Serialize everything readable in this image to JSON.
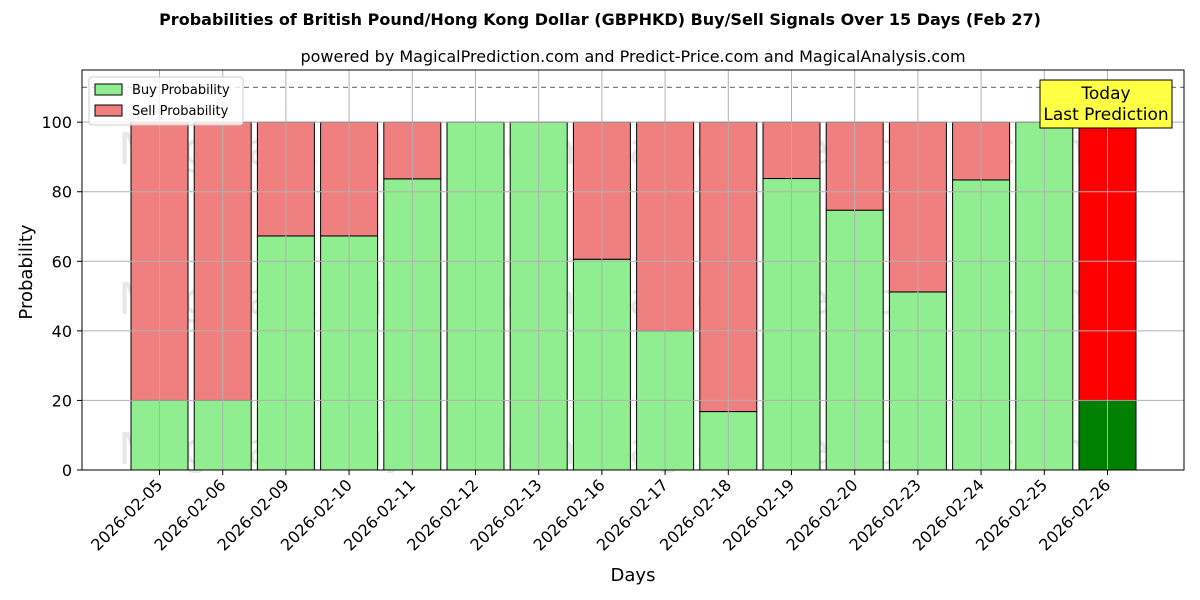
{
  "chart_data": {
    "type": "bar",
    "stacked": true,
    "title": "Probabilities of British Pound/Hong Kong Dollar (GBPHKD) Buy/Sell Signals Over 15 Days (Feb 27)",
    "subtitle": "powered by MagicalPrediction.com and Predict-Price.com and MagicalAnalysis.com",
    "xlabel": "Days",
    "ylabel": "Probability",
    "ylim": [
      0,
      115
    ],
    "yticks": [
      0,
      20,
      40,
      60,
      80,
      100
    ],
    "grid": true,
    "legend_position": "top-left",
    "reference_line": 110,
    "categories": [
      "2026-02-05",
      "2026-02-06",
      "2026-02-09",
      "2026-02-10",
      "2026-02-11",
      "2026-02-12",
      "2026-02-13",
      "2026-02-16",
      "2026-02-17",
      "2026-02-18",
      "2026-02-19",
      "2026-02-20",
      "2026-02-23",
      "2026-02-24",
      "2026-02-25",
      "2026-02-26"
    ],
    "series": [
      {
        "name": "Buy Probability",
        "color": "#90ee90",
        "values": [
          20,
          20,
          67.3,
          67.3,
          83.7,
          100,
          100,
          60.6,
          40,
          16.8,
          83.8,
          74.7,
          51.2,
          83.4,
          100,
          20
        ]
      },
      {
        "name": "Sell Probability",
        "color": "#f08080",
        "values": [
          80,
          80,
          32.7,
          32.7,
          16.3,
          0,
          0,
          39.4,
          60,
          83.2,
          16.2,
          25.3,
          48.8,
          16.6,
          0,
          80
        ]
      }
    ],
    "highlight": {
      "index": 15,
      "buy_color": "#008000",
      "sell_color": "#ff0000"
    },
    "annotation": {
      "lines": [
        "Today",
        "Last Prediction"
      ],
      "background": "#ffff44"
    },
    "watermarks": [
      "MagicalAnalysis.com",
      "MagicalPrediction.com"
    ]
  }
}
